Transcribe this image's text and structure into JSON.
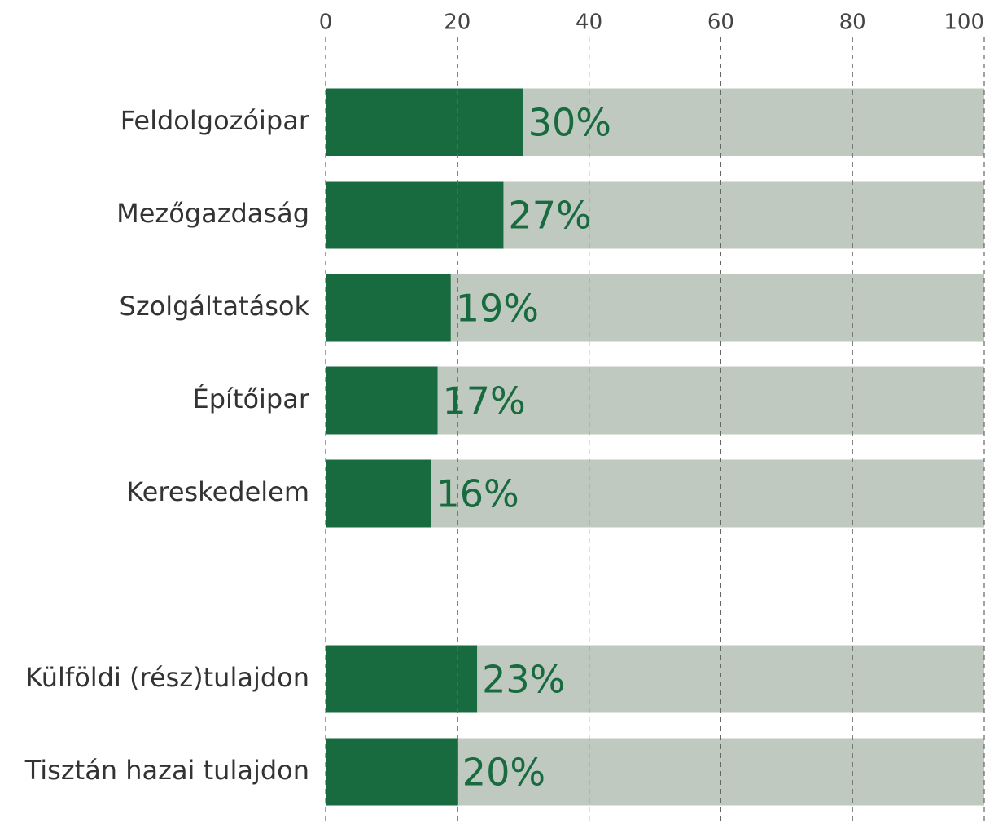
{
  "chart_data": {
    "type": "hbar",
    "categories": [
      "Feldolgozóipar",
      "Mezőgazdaság",
      "Szolgáltatások",
      "Építőipar",
      "Kereskedelem",
      null,
      "Külföldi (rész)tulajdon",
      "Tisztán hazai tulajdon"
    ],
    "values": [
      30,
      27,
      19,
      17,
      16,
      null,
      23,
      20
    ],
    "value_labels": [
      "30%",
      "27%",
      "19%",
      "17%",
      "16%",
      null,
      "23%",
      "20%"
    ],
    "color": "#176b3e",
    "track_color": "#c0c9bf",
    "xlim": [
      0,
      100
    ],
    "xticks": [
      0,
      20,
      40,
      60,
      80,
      100
    ],
    "grid": true
  }
}
